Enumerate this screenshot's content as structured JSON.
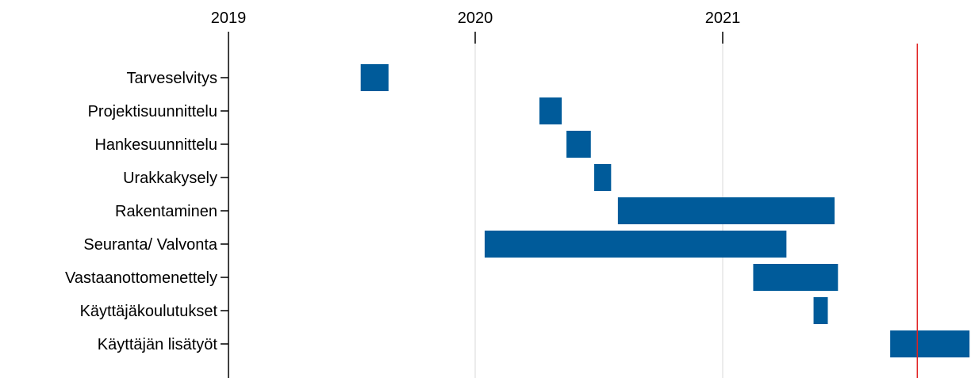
{
  "chart_data": {
    "type": "bar",
    "orientation": "horizontal-gantt",
    "title": "",
    "xlabel": "",
    "ylabel": "",
    "x_axis": {
      "position": "top",
      "ticks": [
        2019,
        2020,
        2021
      ],
      "range": [
        "2019-01-01",
        "2021-12-31"
      ],
      "grid": true
    },
    "categories": [
      "Tarveselvitys",
      "Projektisuunnittelu",
      "Hankesuunnittelu",
      "Urakkakysely",
      "Rakentaminen",
      "Seuranta/ Valvonta",
      "Vastaanottomenettely",
      "Käyttäjäkoulutukset",
      "Käyttäjän lisätyöt"
    ],
    "tasks": [
      {
        "start": "2019-07-15",
        "end": "2019-08-25"
      },
      {
        "start": "2020-04-05",
        "end": "2020-05-08"
      },
      {
        "start": "2020-05-15",
        "end": "2020-06-20"
      },
      {
        "start": "2020-06-25",
        "end": "2020-07-20"
      },
      {
        "start": "2020-07-30",
        "end": "2021-06-15"
      },
      {
        "start": "2020-01-15",
        "end": "2021-04-05"
      },
      {
        "start": "2021-02-15",
        "end": "2021-06-20"
      },
      {
        "start": "2021-05-15",
        "end": "2021-06-05"
      },
      {
        "start": "2021-09-05",
        "end": "2021-12-31"
      }
    ],
    "reference_line": {
      "date": "2021-10-15",
      "color": "#e02020"
    },
    "bar_color": "#005b9a",
    "grid_color": "#d9d9d9",
    "legend": "none"
  }
}
